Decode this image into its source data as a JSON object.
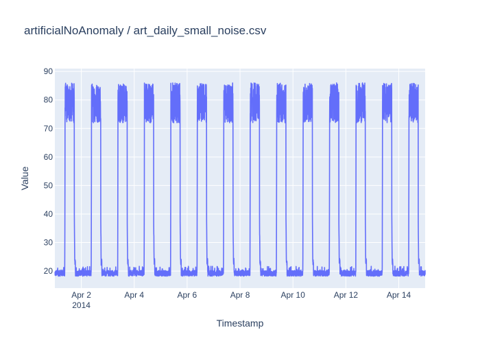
{
  "chart_data": {
    "type": "line",
    "title": "artificialNoAnomaly / art_daily_small_noise.csv",
    "xlabel": "Timestamp",
    "ylabel": "Value",
    "x_range": [
      "2014-04-01T00:00",
      "2014-04-14T23:55"
    ],
    "ylim": [
      14,
      91
    ],
    "yticks": [
      20,
      30,
      40,
      50,
      60,
      70,
      80,
      90
    ],
    "xticks": [
      {
        "date": "2014-04-02",
        "label": "Apr 2",
        "sublabel": "2014"
      },
      {
        "date": "2014-04-04",
        "label": "Apr 4",
        "sublabel": ""
      },
      {
        "date": "2014-04-06",
        "label": "Apr 6",
        "sublabel": ""
      },
      {
        "date": "2014-04-08",
        "label": "Apr 8",
        "sublabel": ""
      },
      {
        "date": "2014-04-10",
        "label": "Apr 10",
        "sublabel": ""
      },
      {
        "date": "2014-04-12",
        "label": "Apr 12",
        "sublabel": ""
      },
      {
        "date": "2014-04-14",
        "label": "Apr 14",
        "sublabel": ""
      }
    ],
    "grid": true,
    "series": [
      {
        "color": "#636efa",
        "daily_pattern": {
          "low_baseline": 19.5,
          "low_noise": 2,
          "high_baseline": 73,
          "high_noise": 14,
          "rise_time": "09:00",
          "fall_time": "17:40",
          "plateau_peak": 87
        }
      }
    ]
  },
  "colors": {
    "plot_background": "#e5ecf6",
    "grid": "#ffffff",
    "line": "#636efa",
    "text": "#2a3f5f"
  }
}
